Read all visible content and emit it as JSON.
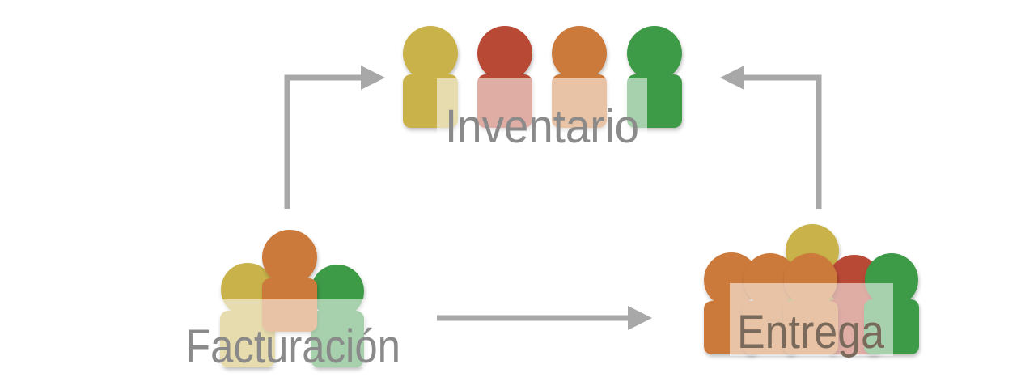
{
  "groups": {
    "inventory": {
      "label": "Inventario"
    },
    "billing": {
      "label": "Facturación"
    },
    "delivery": {
      "label": "Entrega"
    }
  },
  "colors": {
    "yellow": "#c9b24a",
    "red": "#b84a36",
    "orange": "#cc7a3a",
    "green": "#3e9a47",
    "arrow": "#a8a8a8",
    "label": "#8a8a8a"
  },
  "icons": {
    "person": "person-icon",
    "arrow": "arrow-icon"
  }
}
